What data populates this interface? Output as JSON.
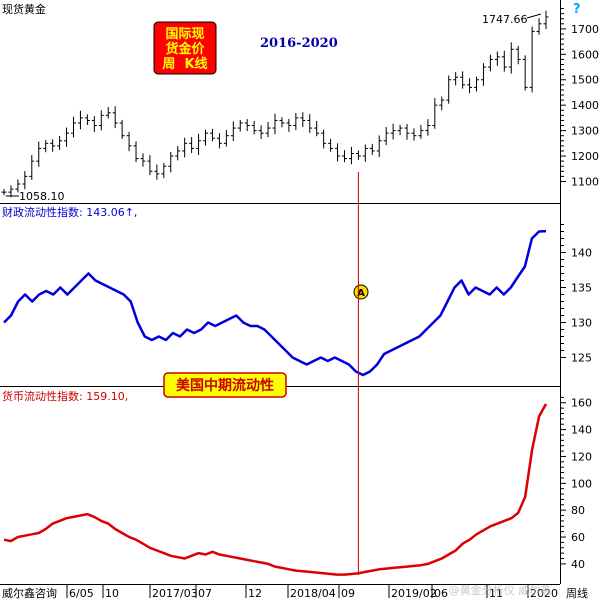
{
  "chart_data": {
    "type": "line",
    "panels": [
      {
        "title": "现货黄金",
        "box_label": [
          "国际现",
          "货金价",
          "周  K线"
        ],
        "range_label": "2016-2020",
        "high_label": "1747.66",
        "low_label": "1058.10",
        "marker": "?",
        "yticks": [
          1100,
          1200,
          1300,
          1400,
          1500,
          1600,
          1700
        ],
        "ylim": [
          1035,
          1790
        ],
        "series": [
          {
            "color": "#000000",
            "style": "ohlc",
            "values": [
              1058,
              1070,
              1090,
              1120,
              1180,
              1230,
              1250,
              1240,
              1260,
              1290,
              1330,
              1350,
              1340,
              1320,
              1360,
              1370,
              1330,
              1280,
              1240,
              1190,
              1180,
              1140,
              1130,
              1160,
              1200,
              1220,
              1250,
              1230,
              1260,
              1290,
              1270,
              1250,
              1280,
              1310,
              1330,
              1320,
              1300,
              1290,
              1310,
              1340,
              1330,
              1320,
              1350,
              1340,
              1310,
              1290,
              1250,
              1230,
              1200,
              1190,
              1210,
              1200,
              1230,
              1220,
              1260,
              1290,
              1300,
              1310,
              1290,
              1280,
              1300,
              1320,
              1400,
              1420,
              1500,
              1510,
              1480,
              1470,
              1500,
              1550,
              1580,
              1590,
              1550,
              1620,
              1580,
              1470,
              1690,
              1720,
              1747
            ]
          }
        ]
      },
      {
        "title": "财政流动性指数: 143.06↑,",
        "annotation": "A",
        "yticks": [
          125,
          130,
          135,
          140
        ],
        "ylim": [
          121.5,
          145.5
        ],
        "series": [
          {
            "color": "#0000dd",
            "values": [
              130,
              131,
              133,
              134,
              133,
              134,
              134.5,
              134,
              135,
              134,
              135,
              136,
              137,
              136,
              135.5,
              135,
              134.5,
              134,
              133,
              130,
              128,
              127.5,
              128,
              127.5,
              128.5,
              128,
              129,
              128.5,
              129,
              130,
              129.5,
              130,
              130.5,
              131,
              130,
              129.5,
              129.5,
              129,
              128,
              127,
              126,
              125,
              124.5,
              124,
              124.5,
              125,
              124.5,
              125,
              124.5,
              124,
              123,
              122.5,
              123,
              124,
              125.5,
              126,
              126.5,
              127,
              127.5,
              128,
              129,
              130,
              131,
              133,
              135,
              136,
              134,
              135,
              134.5,
              134,
              135,
              134,
              135,
              136.5,
              138,
              142,
              143,
              143.06
            ]
          }
        ]
      },
      {
        "title": "货币流动性指数: 159.10,",
        "callout": "美国中期流动性",
        "yticks": [
          40,
          60,
          80,
          100,
          120,
          140,
          160
        ],
        "ylim": [
          28,
          168
        ],
        "series": [
          {
            "color": "#dd0000",
            "values": [
              58,
              57,
              60,
              61,
              62,
              63,
              66,
              70,
              72,
              74,
              75,
              76,
              77,
              75,
              72,
              70,
              66,
              63,
              60,
              58,
              55,
              52,
              50,
              48,
              46,
              45,
              44,
              46,
              48,
              47,
              49,
              47,
              46,
              45,
              44,
              43,
              42,
              41,
              40,
              38,
              37,
              36,
              35,
              34.5,
              34,
              33.5,
              33,
              32.5,
              32,
              32,
              32.5,
              33,
              34,
              35,
              36,
              36.5,
              37,
              37.5,
              38,
              38.5,
              39,
              40,
              42,
              44,
              47,
              50,
              55,
              58,
              62,
              65,
              68,
              70,
              72,
              74,
              78,
              90,
              125,
              150,
              159.1
            ]
          }
        ]
      }
    ],
    "x_labels": [
      "威尔鑫咨询",
      "6/05",
      "10",
      "2017/03",
      "07",
      "12",
      "2018/04",
      "09",
      "2019/02",
      "06",
      "11",
      "2020",
      "周线"
    ],
    "vertical_marker_index": 51
  },
  "watermark": "@黄金分析仪 威尔鑫"
}
